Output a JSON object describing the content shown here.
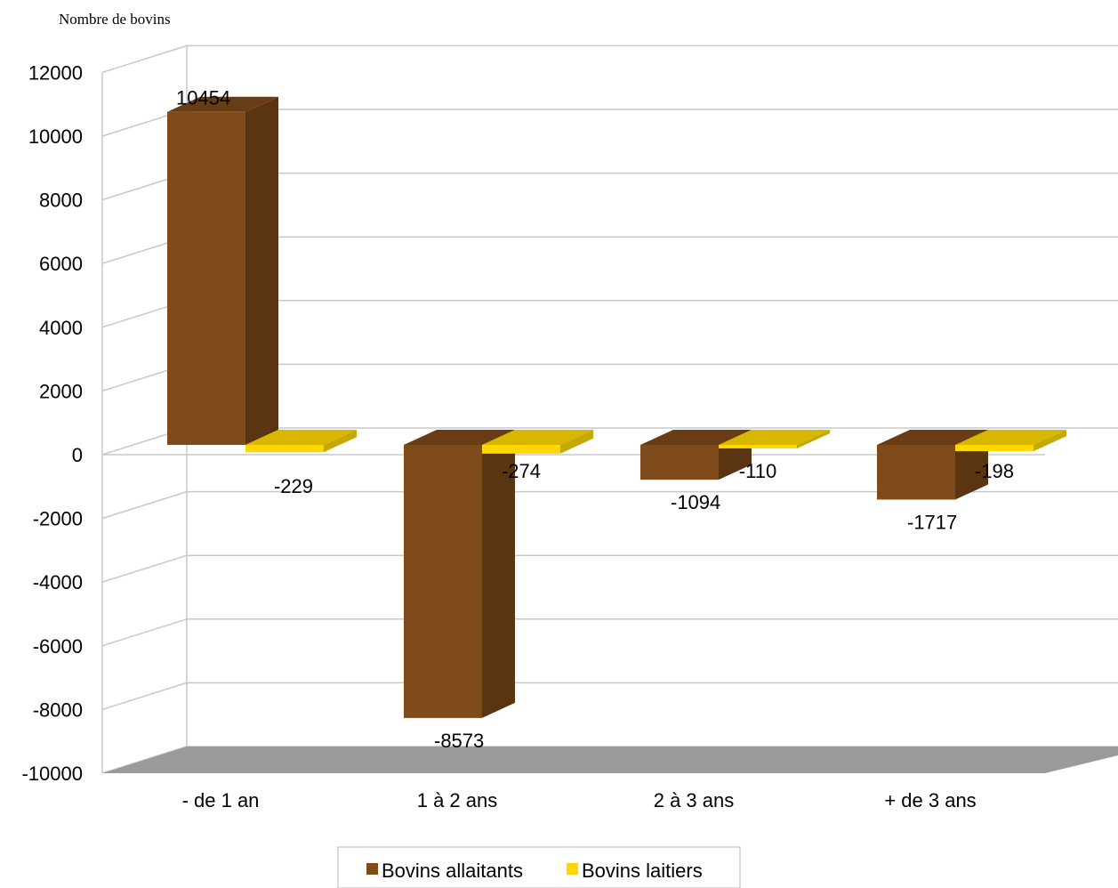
{
  "chart_data": {
    "type": "bar",
    "title": "",
    "ylabel": "Nombre de bovins",
    "xlabel": "",
    "categories": [
      "- de 1 an",
      "1 à 2 ans",
      "2 à 3 ans",
      "+ de 3 ans"
    ],
    "series": [
      {
        "name": "Bovins allaitants",
        "values": [
          10454,
          -8573,
          -1094,
          -1717
        ],
        "color": "#7f4b1a"
      },
      {
        "name": "Bovins laitiers",
        "values": [
          -229,
          -274,
          -110,
          -198
        ],
        "color": "#ffd700"
      }
    ],
    "ylim": [
      -10000,
      12000
    ],
    "yticks": [
      "12000",
      "10000",
      "8000",
      "6000",
      "4000",
      "2000",
      "0",
      "-2000",
      "-4000",
      "-6000",
      "-8000",
      "-10000"
    ],
    "grid": true,
    "legend_position": "bottom",
    "three_d": true
  }
}
